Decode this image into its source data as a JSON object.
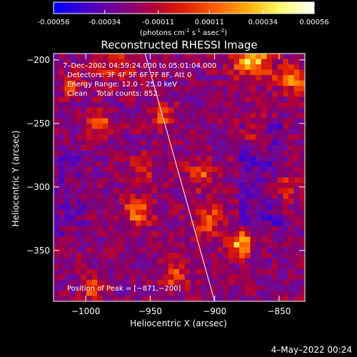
{
  "chart_data": {
    "type": "heatmap",
    "title": "Reconstructed RHESSI Image",
    "colorbar": {
      "ticks": [
        "-0.00056",
        "-0.00034",
        "-0.00011",
        "0.00011",
        "0.00034",
        "0.00056"
      ],
      "label_main": "(photons cm",
      "label_exp1": "-2",
      "label_mid1": " s",
      "label_exp2": "-1",
      "label_mid2": " asec",
      "label_exp3": "-2",
      "label_end": ")",
      "range": [
        -0.00056,
        0.00056
      ],
      "colors": [
        "#0000ff",
        "#4400cc",
        "#7a0090",
        "#b00040",
        "#e02000",
        "#ff6000",
        "#ffb000",
        "#ffff70",
        "#ffffff"
      ]
    },
    "xlabel": "Heliocentric X (arcsec)",
    "ylabel": "Heliocentric Y (arcsec)",
    "xlim": [
      -1025,
      -830
    ],
    "ylim": [
      -390,
      -195
    ],
    "xticks": [
      -1000,
      -950,
      -900,
      -850
    ],
    "xtick_labels": [
      "−1000",
      "−950",
      "−900",
      "−850"
    ],
    "yticks": [
      -200,
      -250,
      -300,
      -350
    ],
    "ytick_labels": [
      "−200",
      "−250",
      "−300",
      "−350"
    ],
    "annotations": [
      "7–Dec–2002 04:59:24.000 to 05:01:04.000",
      "Detectors: 3F 4F 5F 6F 7F 8F, Att 0",
      "Energy Range: 12.0 – 25.0 keV",
      "Clean    Total counts: 852."
    ],
    "peak_label": "Position of Peak = [−871,−200]",
    "peak": [
      -871,
      -200
    ],
    "limb_line": [
      [
        -954,
        -195
      ],
      [
        -900,
        -390
      ]
    ]
  },
  "footer": {
    "date": "4–May–2022 00:24"
  }
}
